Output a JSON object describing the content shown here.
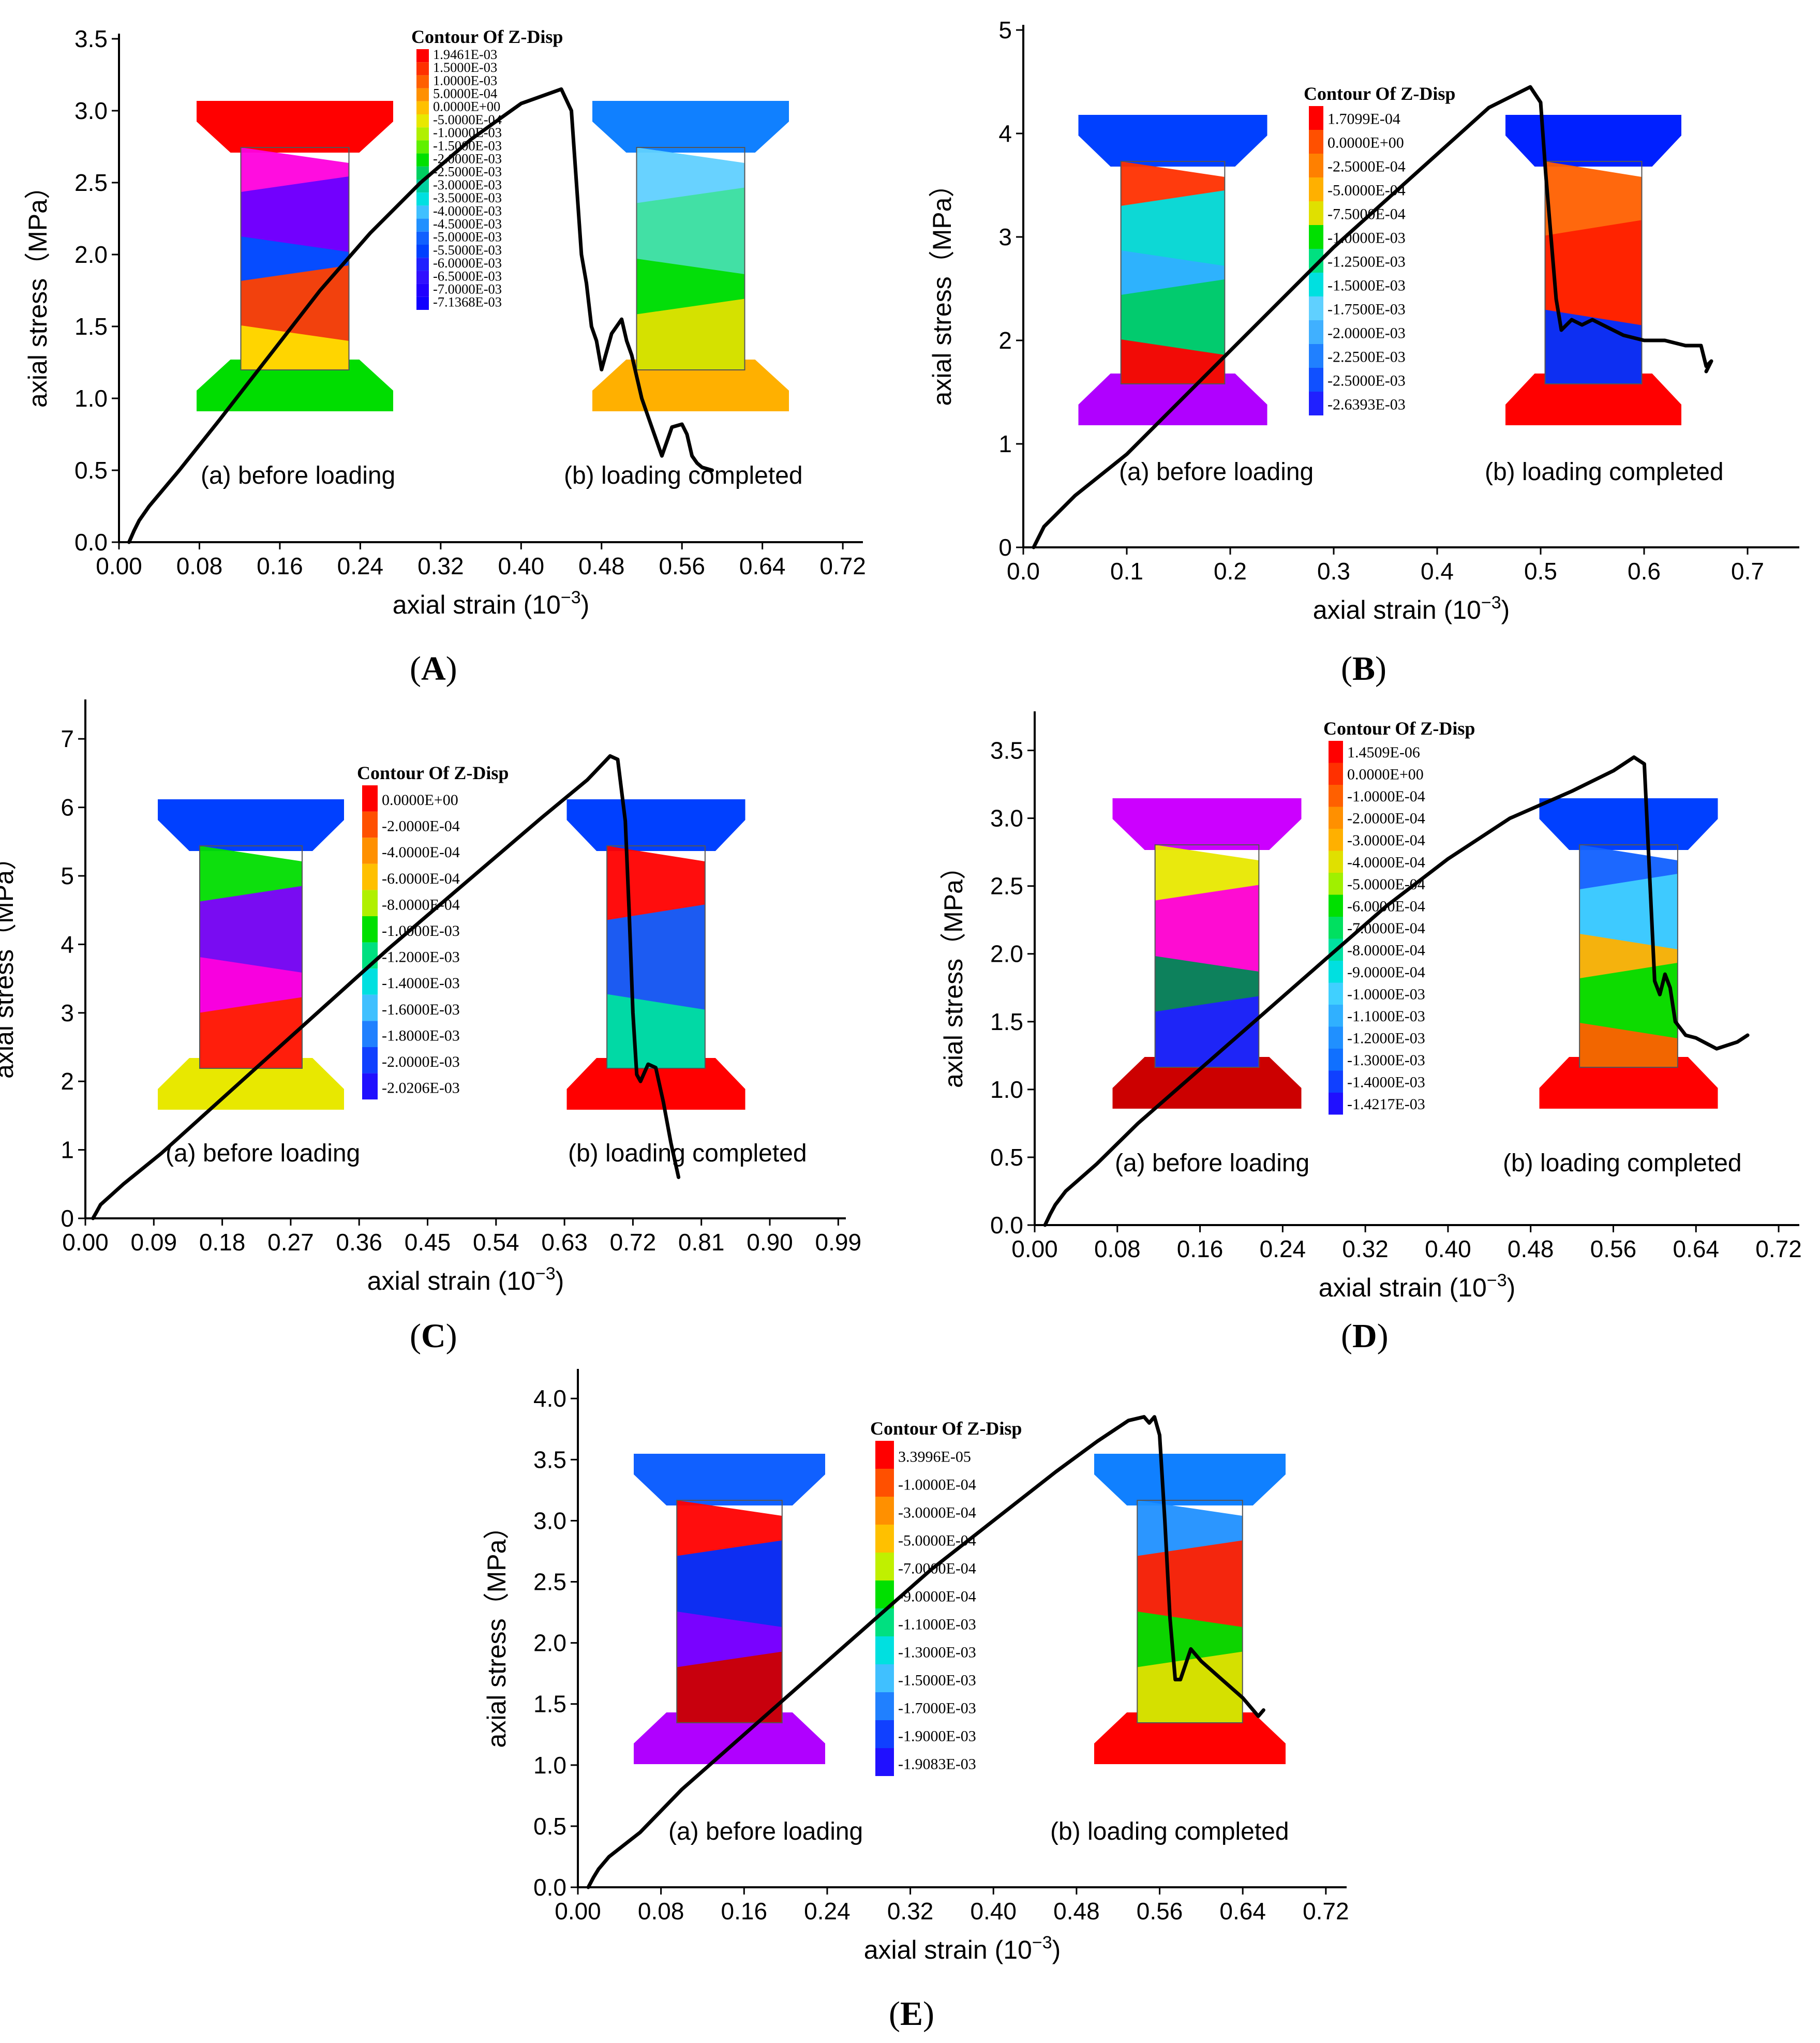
{
  "panels": [
    {
      "id": "A",
      "label_open": "(",
      "label_letter": "A",
      "label_close": ")",
      "chart_data": {
        "type": "line",
        "xlabel": "axial strain",
        "xunit_base": "(10",
        "xunit_exp": "−3",
        "xunit_close": ")",
        "ylabel": "axial stress（MPa）",
        "xlim": [
          0,
          0.74
        ],
        "ylim": [
          0,
          3.5
        ],
        "xticks": [
          "0.00",
          "0.08",
          "0.16",
          "0.24",
          "0.32",
          "0.40",
          "0.48",
          "0.56",
          "0.64",
          "0.72"
        ],
        "xtick_values": [
          0,
          0.08,
          0.16,
          0.24,
          0.32,
          0.4,
          0.48,
          0.56,
          0.64,
          0.72
        ],
        "yticks": [
          "0.0",
          "0.5",
          "1.0",
          "1.5",
          "2.0",
          "2.5",
          "3.0",
          "3.5"
        ],
        "ytick_values": [
          0,
          0.5,
          1.0,
          1.5,
          2.0,
          2.5,
          3.0,
          3.5
        ],
        "series": [
          {
            "name": "stress-strain",
            "x": [
              0.01,
              0.015,
              0.02,
              0.03,
              0.06,
              0.1,
              0.15,
              0.2,
              0.25,
              0.3,
              0.35,
              0.38,
              0.4,
              0.42,
              0.44,
              0.45,
              0.455,
              0.46,
              0.465,
              0.47,
              0.475,
              0.48,
              0.49,
              0.5,
              0.505,
              0.51,
              0.52,
              0.53,
              0.54,
              0.55,
              0.56,
              0.565,
              0.57,
              0.575,
              0.58,
              0.59
            ],
            "y": [
              0,
              0.08,
              0.15,
              0.25,
              0.5,
              0.85,
              1.3,
              1.75,
              2.15,
              2.5,
              2.8,
              2.95,
              3.05,
              3.1,
              3.15,
              3.0,
              2.5,
              2.0,
              1.8,
              1.5,
              1.4,
              1.2,
              1.45,
              1.55,
              1.4,
              1.3,
              1.0,
              0.8,
              0.6,
              0.8,
              0.82,
              0.75,
              0.6,
              0.55,
              0.52,
              0.5
            ]
          }
        ],
        "annotations": {
          "before": "(a) before loading",
          "after": "(b) loading completed"
        }
      },
      "contour": {
        "title": "Contour Of Z-Disp",
        "values": [
          "1.9461E-03",
          "1.5000E-03",
          "1.0000E-03",
          "5.0000E-04",
          "0.0000E+00",
          "-5.0000E-04",
          "-1.0000E-03",
          "-1.5000E-03",
          "-2.0000E-03",
          "-2.5000E-03",
          "-3.0000E-03",
          "-3.5000E-03",
          "-4.0000E-03",
          "-4.5000E-03",
          "-5.0000E-03",
          "-5.5000E-03",
          "-6.0000E-03",
          "-6.5000E-03",
          "-7.0000E-03",
          "-7.1368E-03"
        ],
        "colors": [
          "#ff0000",
          "#ff3000",
          "#ff6000",
          "#ff9000",
          "#ffc000",
          "#e8e800",
          "#b0f000",
          "#60f000",
          "#00e000",
          "#00d060",
          "#00d0a0",
          "#00e0e0",
          "#40c0ff",
          "#2090ff",
          "#1060ff",
          "#0040ff",
          "#2020ff",
          "#3010ff",
          "#2000ff",
          "#1000ff"
        ]
      },
      "before_specimen": {
        "cap_top": "#ff0000",
        "cap_bottom": "#00dd00",
        "bands": [
          "#ff00dd",
          "#6a00ff",
          "#0050ff",
          "#ff4000",
          "#ffdd00"
        ]
      },
      "after_specimen": {
        "cap_top": "#1080ff",
        "cap_bottom": "#ffb000",
        "bands": [
          "#60d0ff",
          "#40e0a0",
          "#00dd00",
          "#e0e000"
        ]
      }
    },
    {
      "id": "B",
      "label_open": "(",
      "label_letter": "B",
      "label_close": ")",
      "chart_data": {
        "type": "line",
        "xlabel": "axial strain",
        "xunit_base": "(10",
        "xunit_exp": "−3",
        "xunit_close": ")",
        "ylabel": "axial stress（MPa）",
        "xlim": [
          0,
          0.75
        ],
        "ylim": [
          0,
          5
        ],
        "xticks": [
          "0.0",
          "0.1",
          "0.2",
          "0.3",
          "0.4",
          "0.5",
          "0.6",
          "0.7"
        ],
        "xtick_values": [
          0,
          0.1,
          0.2,
          0.3,
          0.4,
          0.5,
          0.6,
          0.7
        ],
        "yticks": [
          "0",
          "1",
          "2",
          "3",
          "4",
          "5"
        ],
        "ytick_values": [
          0,
          1,
          2,
          3,
          4,
          5
        ],
        "series": [
          {
            "name": "stress-strain",
            "x": [
              0.01,
              0.015,
              0.02,
              0.03,
              0.05,
              0.1,
              0.15,
              0.2,
              0.25,
              0.3,
              0.35,
              0.4,
              0.45,
              0.48,
              0.49,
              0.5,
              0.505,
              0.51,
              0.515,
              0.52,
              0.53,
              0.54,
              0.55,
              0.56,
              0.58,
              0.6,
              0.62,
              0.64,
              0.655,
              0.66,
              0.665,
              0.66
            ],
            "y": [
              0,
              0.1,
              0.2,
              0.3,
              0.5,
              0.9,
              1.4,
              1.9,
              2.4,
              2.9,
              3.35,
              3.8,
              4.25,
              4.4,
              4.45,
              4.3,
              3.6,
              3.0,
              2.4,
              2.1,
              2.2,
              2.15,
              2.2,
              2.15,
              2.05,
              2.0,
              2.0,
              1.95,
              1.95,
              1.75,
              1.8,
              1.7
            ]
          }
        ],
        "annotations": {
          "before": "(a) before loading",
          "after": "(b) loading completed"
        }
      },
      "contour": {
        "title": "Contour Of Z-Disp",
        "values": [
          "1.7099E-04",
          "0.0000E+00",
          "-2.5000E-04",
          "-5.0000E-04",
          "-7.5000E-04",
          "-1.0000E-03",
          "-1.2500E-03",
          "-1.5000E-03",
          "-1.7500E-03",
          "-2.0000E-03",
          "-2.2500E-03",
          "-2.5000E-03",
          "-2.6393E-03"
        ],
        "colors": [
          "#ff0000",
          "#ff5000",
          "#ff8000",
          "#ffb000",
          "#e0e000",
          "#00e000",
          "#00e080",
          "#00e0e0",
          "#60d0ff",
          "#40b0ff",
          "#2080ff",
          "#1050ff",
          "#2020ff"
        ]
      },
      "before_specimen": {
        "cap_top": "#0040ff",
        "cap_bottom": "#b000ff",
        "bands": [
          "#ff3000",
          "#00e0e0",
          "#30b0ff",
          "#00cc66",
          "#ff0000"
        ]
      },
      "after_specimen": {
        "cap_top": "#0020ff",
        "cap_bottom": "#ff0000",
        "bands": [
          "#ff6000",
          "#ff2000",
          "#0030ff"
        ]
      }
    },
    {
      "id": "C",
      "label_open": "(",
      "label_letter": "C",
      "label_close": ")",
      "chart_data": {
        "type": "line",
        "xlabel": "axial strain",
        "xunit_base": "(10",
        "xunit_exp": "−3",
        "xunit_close": ")",
        "ylabel": "axial stress（MPa）",
        "xlim": [
          0,
          1.0
        ],
        "ylim": [
          0,
          7.5
        ],
        "xticks": [
          "0.00",
          "0.09",
          "0.18",
          "0.27",
          "0.36",
          "0.45",
          "0.54",
          "0.63",
          "0.72",
          "0.81",
          "0.90",
          "0.99"
        ],
        "xtick_values": [
          0,
          0.09,
          0.18,
          0.27,
          0.36,
          0.45,
          0.54,
          0.63,
          0.72,
          0.81,
          0.9,
          0.99
        ],
        "yticks": [
          "0",
          "1",
          "2",
          "3",
          "4",
          "5",
          "6",
          "7"
        ],
        "ytick_values": [
          0,
          1,
          2,
          3,
          4,
          5,
          6,
          7
        ],
        "series": [
          {
            "name": "stress-strain",
            "x": [
              0.01,
              0.015,
              0.02,
              0.03,
              0.05,
              0.1,
              0.2,
              0.3,
              0.4,
              0.5,
              0.6,
              0.66,
              0.69,
              0.7,
              0.71,
              0.715,
              0.72,
              0.725,
              0.73,
              0.74,
              0.75,
              0.76,
              0.77,
              0.78
            ],
            "y": [
              0,
              0.1,
              0.2,
              0.3,
              0.5,
              0.95,
              1.95,
              2.95,
              3.95,
              4.9,
              5.85,
              6.4,
              6.75,
              6.7,
              5.8,
              4.5,
              3.0,
              2.1,
              2.0,
              2.25,
              2.2,
              1.7,
              1.1,
              0.6
            ]
          }
        ],
        "annotations": {
          "before": "(a) before loading",
          "after": "(b) loading completed"
        }
      },
      "contour": {
        "title": "Contour Of Z-Disp",
        "values": [
          "0.0000E+00",
          "-2.0000E-04",
          "-4.0000E-04",
          "-6.0000E-04",
          "-8.0000E-04",
          "-1.0000E-03",
          "-1.2000E-03",
          "-1.4000E-03",
          "-1.6000E-03",
          "-1.8000E-03",
          "-2.0000E-03",
          "-2.0206E-03"
        ],
        "colors": [
          "#ff0000",
          "#ff5000",
          "#ff9000",
          "#ffc000",
          "#b0f000",
          "#00e000",
          "#00e080",
          "#00e0e0",
          "#40c0ff",
          "#2080ff",
          "#1040ff",
          "#2010ff"
        ]
      },
      "before_specimen": {
        "cap_top": "#0040ff",
        "cap_bottom": "#e8e800",
        "bands": [
          "#00dd00",
          "#8000ff",
          "#ff00dd",
          "#ff2000"
        ]
      },
      "after_specimen": {
        "cap_top": "#0040ff",
        "cap_bottom": "#ff0000",
        "bands": [
          "#ff0000",
          "#1060ff",
          "#00e0a0"
        ]
      }
    },
    {
      "id": "D",
      "label_open": "(",
      "label_letter": "D",
      "label_close": ")",
      "chart_data": {
        "type": "line",
        "xlabel": "axial strain",
        "xunit_base": "(10",
        "xunit_exp": "−3",
        "xunit_close": ")",
        "ylabel": "axial stress（MPa）",
        "xlim": [
          0,
          0.74
        ],
        "ylim": [
          0,
          3.75
        ],
        "xticks": [
          "0.00",
          "0.08",
          "0.16",
          "0.24",
          "0.32",
          "0.40",
          "0.48",
          "0.56",
          "0.64",
          "0.72"
        ],
        "xtick_values": [
          0,
          0.08,
          0.16,
          0.24,
          0.32,
          0.4,
          0.48,
          0.56,
          0.64,
          0.72
        ],
        "yticks": [
          "0.0",
          "0.5",
          "1.0",
          "1.5",
          "2.0",
          "2.5",
          "3.0",
          "3.5"
        ],
        "ytick_values": [
          0,
          0.5,
          1.0,
          1.5,
          2.0,
          2.5,
          3.0,
          3.5
        ],
        "series": [
          {
            "name": "stress-strain",
            "x": [
              0.01,
              0.015,
              0.02,
              0.03,
              0.06,
              0.1,
              0.16,
              0.22,
              0.28,
              0.34,
              0.4,
              0.46,
              0.52,
              0.56,
              0.58,
              0.59,
              0.595,
              0.6,
              0.605,
              0.61,
              0.615,
              0.62,
              0.63,
              0.64,
              0.66,
              0.68,
              0.69
            ],
            "y": [
              0,
              0.08,
              0.15,
              0.25,
              0.45,
              0.75,
              1.15,
              1.55,
              1.95,
              2.35,
              2.7,
              3.0,
              3.2,
              3.35,
              3.45,
              3.4,
              2.6,
              1.8,
              1.7,
              1.85,
              1.75,
              1.5,
              1.4,
              1.38,
              1.3,
              1.35,
              1.4
            ]
          }
        ],
        "annotations": {
          "before": "(a) before loading",
          "after": "(b) loading completed"
        }
      },
      "contour": {
        "title": "Contour Of Z-Disp",
        "values": [
          "1.4509E-06",
          "0.0000E+00",
          "-1.0000E-04",
          "-2.0000E-04",
          "-3.0000E-04",
          "-4.0000E-04",
          "-5.0000E-04",
          "-6.0000E-04",
          "-7.0000E-04",
          "-8.0000E-04",
          "-9.0000E-04",
          "-1.0000E-03",
          "-1.1000E-03",
          "-1.2000E-03",
          "-1.3000E-03",
          "-1.4000E-03",
          "-1.4217E-03"
        ],
        "colors": [
          "#ff0000",
          "#ff3000",
          "#ff6000",
          "#ff9000",
          "#ffb000",
          "#e0e000",
          "#a0f000",
          "#00e000",
          "#00e060",
          "#00e0a0",
          "#00e0e0",
          "#40d0ff",
          "#30b0ff",
          "#2090ff",
          "#1070ff",
          "#1040ff",
          "#2010ff"
        ]
      },
      "before_specimen": {
        "cap_top": "#cc00ff",
        "cap_bottom": "#cc0000",
        "bands": [
          "#e8e800",
          "#ff00dd",
          "#008855",
          "#2020ff"
        ]
      },
      "after_specimen": {
        "cap_top": "#0040ff",
        "cap_bottom": "#ff0000",
        "bands": [
          "#1060ff",
          "#40d0ff",
          "#ffb000",
          "#00dd00",
          "#ff6000"
        ]
      }
    },
    {
      "id": "E",
      "label_open": "(",
      "label_letter": "E",
      "label_close": ")",
      "chart_data": {
        "type": "line",
        "xlabel": "axial strain",
        "xunit_base": "(10",
        "xunit_exp": "−3",
        "xunit_close": ")",
        "ylabel": "axial stress（MPa）",
        "xlim": [
          0,
          0.74
        ],
        "ylim": [
          0,
          4.2
        ],
        "xticks": [
          "0.00",
          "0.08",
          "0.16",
          "0.24",
          "0.32",
          "0.40",
          "0.48",
          "0.56",
          "0.64",
          "0.72"
        ],
        "xtick_values": [
          0,
          0.08,
          0.16,
          0.24,
          0.32,
          0.4,
          0.48,
          0.56,
          0.64,
          0.72
        ],
        "yticks": [
          "0.0",
          "0.5",
          "1.0",
          "1.5",
          "2.0",
          "2.5",
          "3.0",
          "3.5",
          "4.0"
        ],
        "ytick_values": [
          0,
          0.5,
          1.0,
          1.5,
          2.0,
          2.5,
          3.0,
          3.5,
          4.0
        ],
        "series": [
          {
            "name": "stress-strain",
            "x": [
              0.01,
              0.015,
              0.02,
              0.03,
              0.06,
              0.1,
              0.16,
              0.22,
              0.28,
              0.34,
              0.4,
              0.46,
              0.5,
              0.53,
              0.545,
              0.55,
              0.555,
              0.56,
              0.565,
              0.57,
              0.575,
              0.58,
              0.59,
              0.6,
              0.62,
              0.64,
              0.65,
              0.655,
              0.66
            ],
            "y": [
              0,
              0.08,
              0.15,
              0.25,
              0.45,
              0.8,
              1.25,
              1.7,
              2.15,
              2.6,
              3.0,
              3.4,
              3.65,
              3.82,
              3.85,
              3.8,
              3.85,
              3.7,
              3.0,
              2.2,
              1.7,
              1.7,
              1.95,
              1.85,
              1.7,
              1.55,
              1.45,
              1.4,
              1.45
            ]
          }
        ],
        "annotations": {
          "before": "(a) before loading",
          "after": "(b) loading completed"
        }
      },
      "contour": {
        "title": "Contour Of Z-Disp",
        "values": [
          "3.3996E-05",
          "-1.0000E-04",
          "-3.0000E-04",
          "-5.0000E-04",
          "-7.0000E-04",
          "-9.0000E-04",
          "-1.1000E-03",
          "-1.3000E-03",
          "-1.5000E-03",
          "-1.7000E-03",
          "-1.9000E-03",
          "-1.9083E-03"
        ],
        "colors": [
          "#ff0000",
          "#ff5000",
          "#ff9000",
          "#ffc000",
          "#c0f000",
          "#00e000",
          "#00e080",
          "#00e0e0",
          "#40c0ff",
          "#2080ff",
          "#1040ff",
          "#2010ff"
        ]
      },
      "before_specimen": {
        "cap_top": "#1060ff",
        "cap_bottom": "#b000ff",
        "bands": [
          "#ff0000",
          "#0030ff",
          "#8000ff",
          "#cc0000"
        ]
      },
      "after_specimen": {
        "cap_top": "#1080ff",
        "cap_bottom": "#ff0000",
        "bands": [
          "#2090ff",
          "#ff2000",
          "#00dd00",
          "#e0e000"
        ]
      }
    }
  ]
}
